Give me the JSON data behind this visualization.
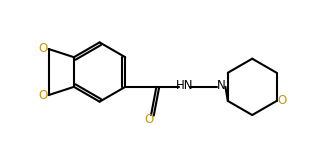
{
  "bg_color": "#ffffff",
  "line_color": "#000000",
  "lw": 1.5,
  "fig_width": 3.15,
  "fig_height": 1.45,
  "dpi": 100,
  "xlim": [
    0.0,
    3.15
  ],
  "ylim": [
    -0.1,
    1.45
  ],
  "o_color": "#c8960c",
  "n_color": "#000000",
  "label_fontsize": 8.5
}
